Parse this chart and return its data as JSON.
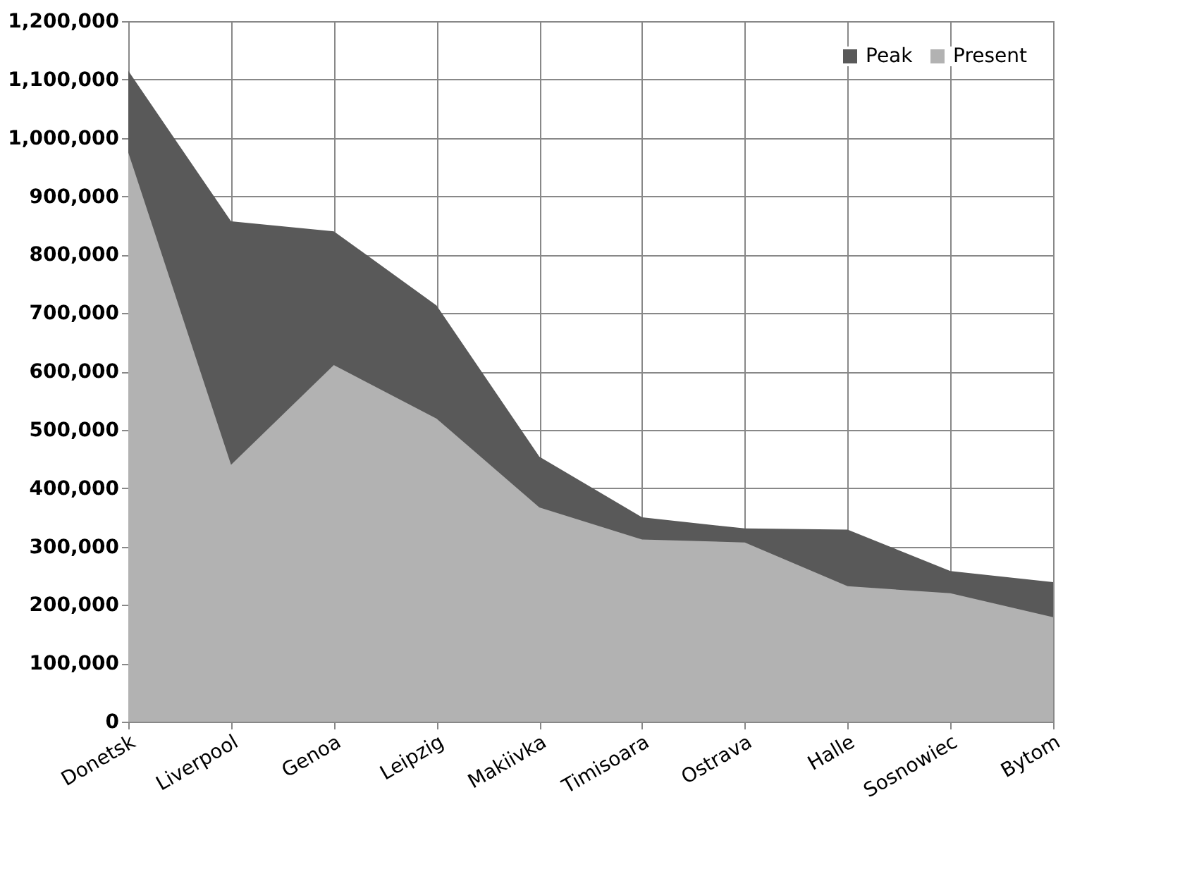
{
  "chart_data": {
    "type": "area",
    "categories": [
      "Donetsk",
      "Liverpool",
      "Genoa",
      "Leipzig",
      "Makiivka",
      "Timisoara",
      "Ostrava",
      "Halle",
      "Sosnowiec",
      "Bytom"
    ],
    "series": [
      {
        "name": "Peak",
        "color": "#595959",
        "values": [
          1115000,
          857000,
          840000,
          713000,
          454000,
          350000,
          331000,
          329000,
          258000,
          239000
        ]
      },
      {
        "name": "Present",
        "color": "#b2b2b2",
        "values": [
          975000,
          440000,
          611000,
          519000,
          367000,
          312000,
          307000,
          232000,
          220000,
          179000
        ]
      }
    ],
    "ylim": [
      0,
      1200000
    ],
    "yticks": [
      0,
      {
        "value": 100000,
        "label": "100,000"
      },
      {
        "value": 200000,
        "label": "200,000"
      },
      {
        "value": 300000,
        "label": "300,000"
      },
      {
        "value": 400000,
        "label": "400,000"
      },
      {
        "value": 500000,
        "label": "500,000"
      },
      {
        "value": 600000,
        "label": "600,000"
      },
      {
        "value": 700000,
        "label": "700,000"
      },
      {
        "value": 800000,
        "label": "800,000"
      },
      {
        "value": 900000,
        "label": "900,000"
      },
      {
        "value": 1000000,
        "label": "1,000,000"
      },
      {
        "value": 1100000,
        "label": "1,100,000"
      },
      {
        "value": 1200000,
        "label": "1,200,000"
      }
    ],
    "grid": true,
    "legend": "top right"
  }
}
